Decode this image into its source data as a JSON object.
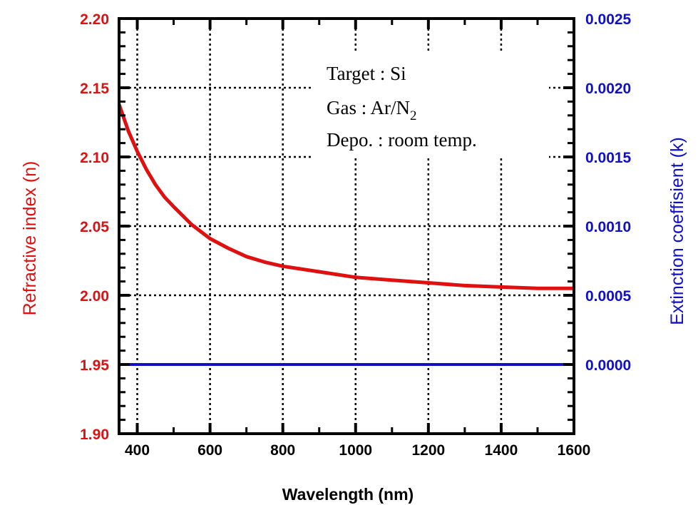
{
  "chart_data": {
    "type": "line",
    "xlabel": "Wavelength (nm)",
    "ylabel_left": "Refractive index (n)",
    "ylabel_right": "Extinction coeffisient (k)",
    "xlim": [
      350,
      1600
    ],
    "ylim_left": [
      1.9,
      2.2
    ],
    "ylim_right": [
      -0.0005,
      0.0025
    ],
    "x_ticks": [
      "400",
      "600",
      "800",
      "1000",
      "1200",
      "1400",
      "1600"
    ],
    "y_ticks_left": [
      "2.20",
      "2.15",
      "2.10",
      "2.05",
      "2.00",
      "1.95",
      "1.90"
    ],
    "y_ticks_right": [
      "0.0025",
      "0.0020",
      "0.0015",
      "0.0010",
      "0.0005",
      "0.0000"
    ],
    "grid": true,
    "annotations": [
      {
        "text": "Target : Si"
      },
      {
        "text": "Gas : Ar/N",
        "subscript": "2"
      },
      {
        "text": "Depo. : room temp."
      }
    ],
    "series": [
      {
        "axis": "left",
        "color": "#e01010",
        "x": [
          350,
          375,
          400,
          425,
          450,
          475,
          500,
          550,
          600,
          650,
          700,
          750,
          800,
          850,
          900,
          1000,
          1100,
          1200,
          1300,
          1400,
          1500,
          1600
        ],
        "y": [
          2.138,
          2.119,
          2.104,
          2.091,
          2.08,
          2.071,
          2.064,
          2.051,
          2.041,
          2.034,
          2.028,
          2.024,
          2.021,
          2.019,
          2.017,
          2.013,
          2.011,
          2.009,
          2.007,
          2.006,
          2.005,
          2.005
        ]
      },
      {
        "axis": "right",
        "color": "#1010c8",
        "x": [
          350,
          1600
        ],
        "y": [
          0.0,
          0.0
        ]
      }
    ]
  },
  "colors": {
    "left_axis": "#e01010",
    "right_axis": "#1010c8",
    "frame": "#000000"
  }
}
